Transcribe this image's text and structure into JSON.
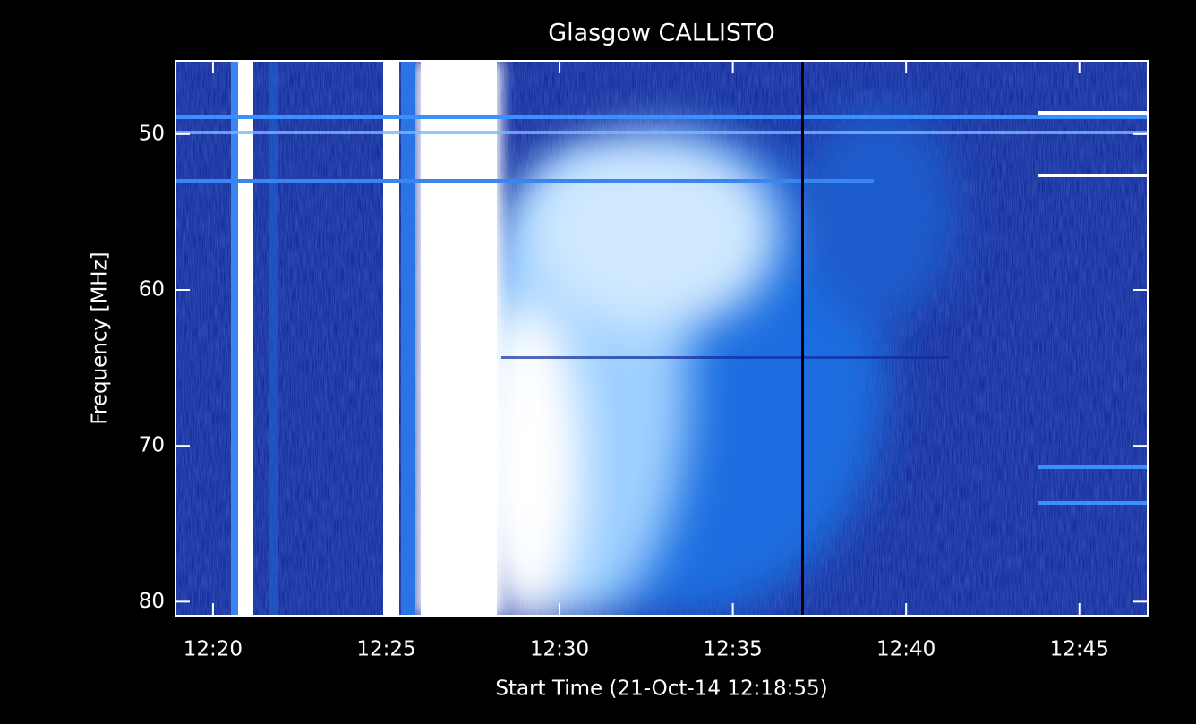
{
  "chart_data": {
    "type": "spectrogram",
    "title": "Glasgow CALLISTO",
    "xlabel": "Start Time (21-Oct-14 12:18:55)",
    "ylabel": "Frequency [MHz]",
    "xlim": [
      738.917,
      766.97
    ],
    "ylim": [
      45.3,
      80.9
    ],
    "xticks": [
      {
        "value": 740,
        "label": "12:20"
      },
      {
        "value": 745,
        "label": "12:25"
      },
      {
        "value": 750,
        "label": "12:30"
      },
      {
        "value": 755,
        "label": "12:35"
      },
      {
        "value": 760,
        "label": "12:40"
      },
      {
        "value": 765,
        "label": "12:45"
      }
    ],
    "yticks": [
      50,
      60,
      70,
      80
    ]
  }
}
